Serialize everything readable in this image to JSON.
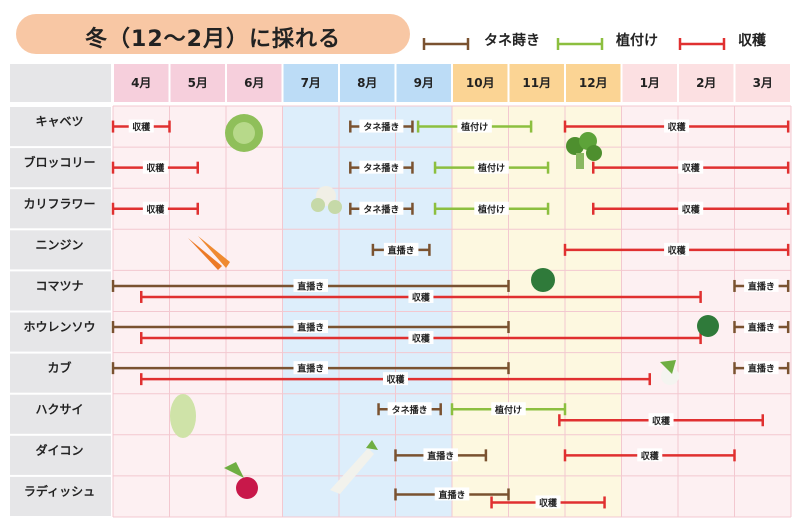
{
  "title": "冬（12〜2月）に採れる",
  "legend": [
    {
      "label": "タネ蒔き",
      "color": "#7a5230"
    },
    {
      "label": "植付け",
      "color": "#8cbf3f"
    },
    {
      "label": "収穫",
      "color": "#e03030"
    }
  ],
  "chart_data": {
    "type": "gantt",
    "months": [
      "4月",
      "5月",
      "6月",
      "7月",
      "8月",
      "9月",
      "10月",
      "11月",
      "12月",
      "1月",
      "2月",
      "3月"
    ],
    "season_colors": {
      "spring": "#f6cfdc",
      "summer": "#bcdcf6",
      "autumn": "#fbd494",
      "winter": "#fce0e2"
    },
    "crops": [
      {
        "name": "キャベツ",
        "bars": [
          {
            "type": "harvest",
            "label": "収穫",
            "start": 4.0,
            "end": 5.0
          },
          {
            "type": "sow",
            "label": "タネ播き",
            "start": 8.2,
            "end": 9.3
          },
          {
            "type": "plant",
            "label": "植付け",
            "start": 9.4,
            "end": 11.4
          },
          {
            "type": "harvest",
            "label": "収穫",
            "start": 12.0,
            "end": 15.95
          }
        ]
      },
      {
        "name": "ブロッコリー",
        "bars": [
          {
            "type": "harvest",
            "label": "収穫",
            "start": 4.0,
            "end": 5.5
          },
          {
            "type": "sow",
            "label": "タネ播き",
            "start": 8.2,
            "end": 9.3
          },
          {
            "type": "plant",
            "label": "植付け",
            "start": 9.7,
            "end": 11.7
          },
          {
            "type": "harvest",
            "label": "収穫",
            "start": 12.5,
            "end": 15.95
          }
        ]
      },
      {
        "name": "カリフラワー",
        "bars": [
          {
            "type": "harvest",
            "label": "収穫",
            "start": 4.0,
            "end": 5.5
          },
          {
            "type": "sow",
            "label": "タネ播き",
            "start": 8.2,
            "end": 9.3
          },
          {
            "type": "plant",
            "label": "植付け",
            "start": 9.7,
            "end": 11.7
          },
          {
            "type": "harvest",
            "label": "収穫",
            "start": 12.5,
            "end": 15.95
          }
        ]
      },
      {
        "name": "ニンジン",
        "bars": [
          {
            "type": "sow",
            "label": "直播き",
            "start": 8.6,
            "end": 9.6
          },
          {
            "type": "harvest",
            "label": "収穫",
            "start": 12.0,
            "end": 15.95
          }
        ]
      },
      {
        "name": "コマツナ",
        "bars": [
          {
            "type": "sow",
            "label": "直播き",
            "start": 4.0,
            "end": 11.0
          },
          {
            "type": "harvest",
            "label": "収穫",
            "start": 4.5,
            "end": 14.4
          },
          {
            "type": "sow",
            "label": "直播き",
            "start": 15.0,
            "end": 15.95
          }
        ]
      },
      {
        "name": "ホウレンソウ",
        "bars": [
          {
            "type": "sow",
            "label": "直播き",
            "start": 4.0,
            "end": 11.0
          },
          {
            "type": "harvest",
            "label": "収穫",
            "start": 4.5,
            "end": 14.4
          },
          {
            "type": "sow",
            "label": "直播き",
            "start": 15.0,
            "end": 15.95
          }
        ]
      },
      {
        "name": "カブ",
        "bars": [
          {
            "type": "sow",
            "label": "直播き",
            "start": 4.0,
            "end": 11.0
          },
          {
            "type": "harvest",
            "label": "収穫",
            "start": 4.5,
            "end": 13.5
          },
          {
            "type": "sow",
            "label": "直播き",
            "start": 15.0,
            "end": 15.95
          }
        ]
      },
      {
        "name": "ハクサイ",
        "bars": [
          {
            "type": "sow",
            "label": "タネ播き",
            "start": 8.7,
            "end": 9.8
          },
          {
            "type": "plant",
            "label": "植付け",
            "start": 10.0,
            "end": 12.0
          },
          {
            "type": "harvest",
            "label": "収穫",
            "start": 11.9,
            "end": 15.5
          }
        ]
      },
      {
        "name": "ダイコン",
        "bars": [
          {
            "type": "sow",
            "label": "直播き",
            "start": 9.0,
            "end": 10.6
          },
          {
            "type": "harvest",
            "label": "収穫",
            "start": 12.0,
            "end": 15.0
          }
        ]
      },
      {
        "name": "ラディッシュ",
        "bars": [
          {
            "type": "sow",
            "label": "直播き",
            "start": 9.0,
            "end": 11.0
          },
          {
            "type": "harvest",
            "label": "収穫",
            "start": 10.7,
            "end": 12.7
          }
        ]
      }
    ]
  }
}
